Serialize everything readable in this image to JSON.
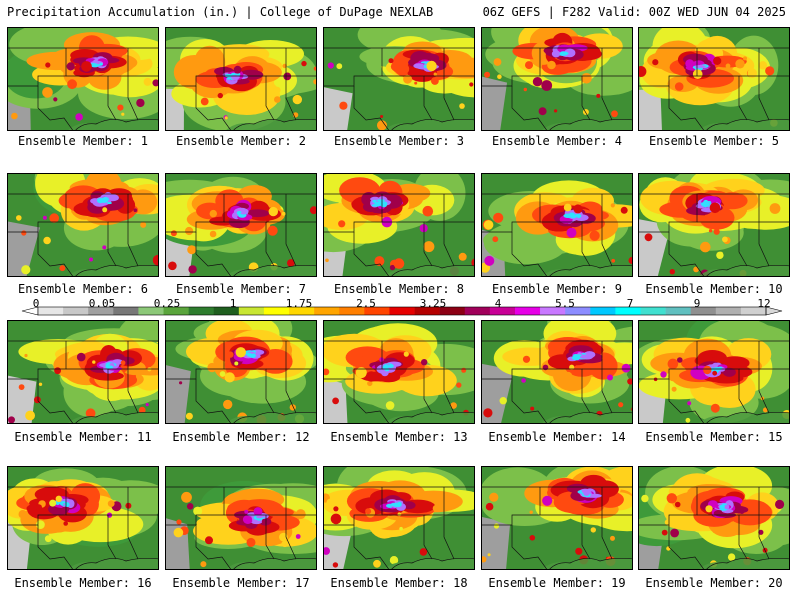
{
  "header": {
    "left": "Precipitation Accumulation (in.) | College of DuPage NEXLAB",
    "right": "06Z GEFS | F282 Valid: 00Z WED JUN 04 2025"
  },
  "panels": [
    {
      "label": "Ensemble Member: 1",
      "member": 1
    },
    {
      "label": "Ensemble Member: 2",
      "member": 2
    },
    {
      "label": "Ensemble Member: 3",
      "member": 3
    },
    {
      "label": "Ensemble Member: 4",
      "member": 4
    },
    {
      "label": "Ensemble Member: 5",
      "member": 5
    },
    {
      "label": "Ensemble Member: 6",
      "member": 6
    },
    {
      "label": "Ensemble Member: 7",
      "member": 7
    },
    {
      "label": "Ensemble Member: 8",
      "member": 8
    },
    {
      "label": "Ensemble Member: 9",
      "member": 9
    },
    {
      "label": "Ensemble Member: 10",
      "member": 10
    },
    {
      "label": "Ensemble Member: 11",
      "member": 11
    },
    {
      "label": "Ensemble Member: 12",
      "member": 12
    },
    {
      "label": "Ensemble Member: 13",
      "member": 13
    },
    {
      "label": "Ensemble Member: 14",
      "member": 14
    },
    {
      "label": "Ensemble Member: 15",
      "member": 15
    },
    {
      "label": "Ensemble Member: 16",
      "member": 16
    },
    {
      "label": "Ensemble Member: 17",
      "member": 17
    },
    {
      "label": "Ensemble Member: 18",
      "member": 18
    },
    {
      "label": "Ensemble Member: 19",
      "member": 19
    },
    {
      "label": "Ensemble Member: 20",
      "member": 20
    }
  ],
  "colorbar": {
    "labels": [
      "0",
      "0.05",
      "0.25",
      "1",
      "1.75",
      "2.5",
      "3.25",
      "4",
      "5.5",
      "7",
      "9",
      "12"
    ],
    "colors": [
      "#e6e6e6",
      "#c8c8c8",
      "#a0a0a0",
      "#787878",
      "#8cc878",
      "#5aa53c",
      "#2e7d2e",
      "#1f5f1f",
      "#c8e632",
      "#ffff00",
      "#ffd700",
      "#ffa500",
      "#ff7f00",
      "#ff4500",
      "#e60000",
      "#b40000",
      "#8c0014",
      "#a0005a",
      "#c80096",
      "#e600e6",
      "#c878ff",
      "#8c8cff",
      "#00c8ff",
      "#00ffff",
      "#40e0d0",
      "#60c0c0",
      "#909090",
      "#b0b0b0",
      "#d0d0d0"
    ]
  }
}
